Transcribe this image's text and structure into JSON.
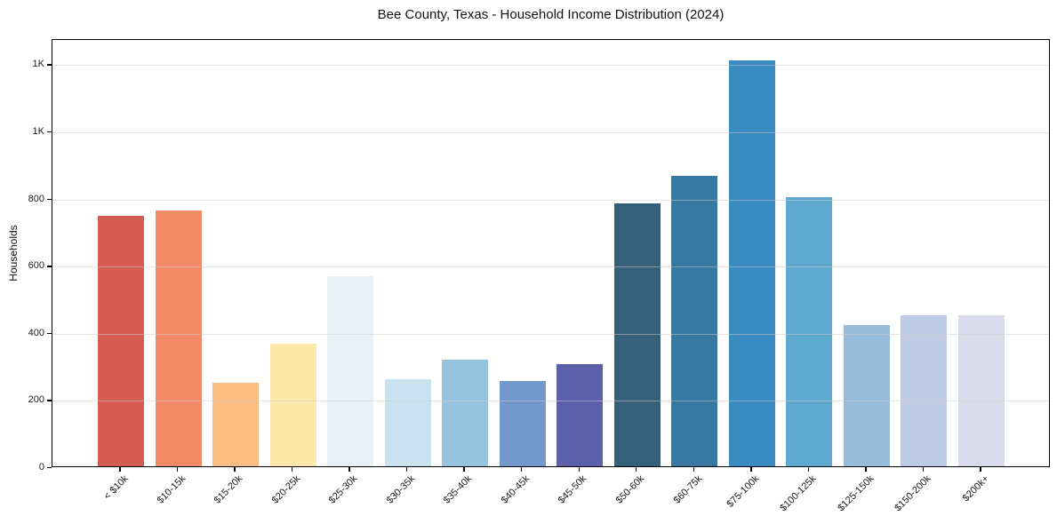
{
  "chart_data": {
    "type": "bar",
    "title": "Bee County, Texas - Household Income Distribution (2024)",
    "xlabel": "",
    "ylabel": "Households",
    "categories": [
      "< $10k",
      "$10-15k",
      "$15-20k",
      "$20-25k",
      "$25-30k",
      "$30-35k",
      "$35-40k",
      "$40-45k",
      "$45-50k",
      "$50-60k",
      "$60-75k",
      "$75-100k",
      "$100-125k",
      "$125-150k",
      "$150-200k",
      "$200k+"
    ],
    "values": [
      745,
      762,
      250,
      365,
      567,
      260,
      318,
      255,
      305,
      782,
      866,
      1210,
      802,
      420,
      450,
      450
    ],
    "bar_colors": [
      "#d65c52",
      "#f28a68",
      "#fbbd80",
      "#fce8a8",
      "#e6f2f5",
      "#c8e2ef",
      "#95c2dd",
      "#7398ca",
      "#5c5fa9",
      "#356178",
      "#3779a1",
      "#3a8bc2",
      "#5ea9ce",
      "#96bcdc",
      "#bfcbe5",
      "#d9dbeb"
    ],
    "ylim": [
      0,
      1275
    ],
    "ytick_values": [
      0,
      200,
      400,
      600,
      800,
      1000,
      1200
    ],
    "ytick_labels": [
      "0",
      "200",
      "400",
      "600",
      "800",
      "1K",
      "1K"
    ],
    "grid": "horizontal-only",
    "legend": "none",
    "x_tick_rotation_deg": 45,
    "spines": "full-box"
  }
}
